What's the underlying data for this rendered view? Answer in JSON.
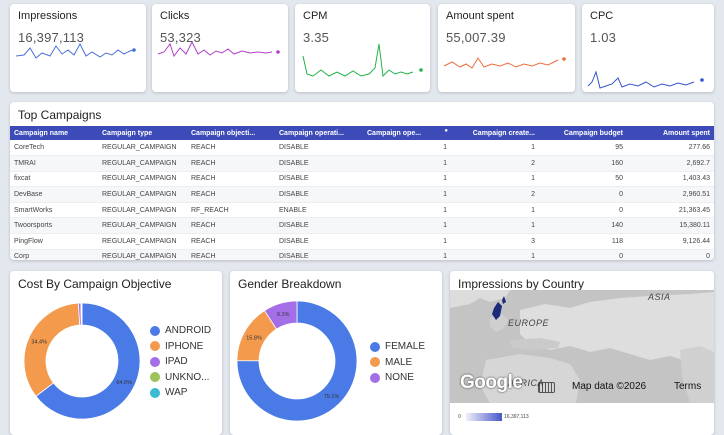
{
  "kpis": [
    {
      "title": "Impressions",
      "value": "16,397,113",
      "color": "#4a6fd9"
    },
    {
      "title": "Clicks",
      "value": "53,323",
      "color": "#b040c8"
    },
    {
      "title": "CPM",
      "value": "3.35",
      "color": "#22b34a"
    },
    {
      "title": "Amount spent",
      "value": "55,007.39",
      "color": "#ef6c3c"
    },
    {
      "title": "CPC",
      "value": "1.03",
      "color": "#3555cc"
    }
  ],
  "campaigns": {
    "title": "Top Campaigns",
    "columns": [
      "Campaign name",
      "Campaign type",
      "Campaign objecti...",
      "Campaign operati...",
      "Campaign ope...",
      "Campaign create...",
      "Campaign budget",
      "Amount spent"
    ],
    "rows": [
      [
        "CoreTech",
        "REGULAR_CAMPAIGN",
        "REACH",
        "DISABLE",
        "1",
        "1",
        "95",
        "277.66"
      ],
      [
        "TMRAI",
        "REGULAR_CAMPAIGN",
        "REACH",
        "DISABLE",
        "1",
        "2",
        "160",
        "2,692.7"
      ],
      [
        "fixcat",
        "REGULAR_CAMPAIGN",
        "REACH",
        "DISABLE",
        "1",
        "1",
        "50",
        "1,403.43"
      ],
      [
        "DevBase",
        "REGULAR_CAMPAIGN",
        "REACH",
        "DISABLE",
        "1",
        "2",
        "0",
        "2,960.51"
      ],
      [
        "SmartWorks",
        "REGULAR_CAMPAIGN",
        "RF_REACH",
        "ENABLE",
        "1",
        "1",
        "0",
        "21,363.45"
      ],
      [
        "Twoorsports",
        "REGULAR_CAMPAIGN",
        "REACH",
        "DISABLE",
        "1",
        "1",
        "140",
        "15,380.11"
      ],
      [
        "PingFlow",
        "REGULAR_CAMPAIGN",
        "REACH",
        "DISABLE",
        "1",
        "3",
        "118",
        "9,126.44"
      ],
      [
        "Corp",
        "REGULAR_CAMPAIGN",
        "REACH",
        "DISABLE",
        "1",
        "1",
        "0",
        "0"
      ]
    ]
  },
  "cost_chart": {
    "title": "Cost By Campaign Objective",
    "legend": [
      "ANDROID",
      "IPHONE",
      "IPAD",
      "UNKNO...",
      "WAP"
    ],
    "colors": [
      "#4a7ae6",
      "#f39a4c",
      "#a36ee6",
      "#9cc25a",
      "#3bbad4"
    ]
  },
  "gender_chart": {
    "title": "Gender Breakdown",
    "legend": [
      "FEMALE",
      "MALE",
      "NONE"
    ],
    "colors": [
      "#4a7ae6",
      "#f39a4c",
      "#a36ee6"
    ]
  },
  "map": {
    "title": "Impressions by Country",
    "region_labels": {
      "asia": "ASIA",
      "europe": "EUROPE",
      "africa": "AFRICA"
    },
    "google_logo": "Google",
    "data_credit": "Map data ©2026",
    "terms": "Terms",
    "scale_min": "0",
    "scale_max": "16,397,113"
  },
  "chart_data": [
    {
      "type": "pie",
      "title": "Cost By Campaign Objective",
      "categories": [
        "ANDROID",
        "IPHONE",
        "IPAD",
        "UNKNO...",
        "WAP"
      ],
      "values": [
        64.6,
        34.4,
        0.7,
        0.2,
        0.1
      ],
      "labels": [
        "64.6%",
        "34.4%",
        "",
        "",
        ""
      ],
      "legend": "right"
    },
    {
      "type": "pie",
      "title": "Gender Breakdown",
      "categories": [
        "FEMALE",
        "MALE",
        "NONE"
      ],
      "values": [
        75.1,
        15.8,
        9.1
      ],
      "labels": [
        "75.1%",
        "15.8%",
        "9.1%"
      ],
      "legend": "right"
    }
  ]
}
